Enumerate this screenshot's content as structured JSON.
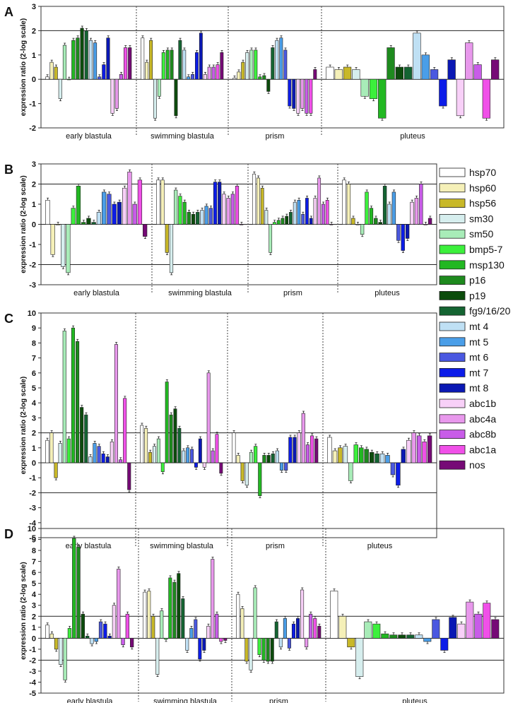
{
  "legend": {
    "items": [
      {
        "label": "hsp70",
        "color": "#ffffff"
      },
      {
        "label": "hsp60",
        "color": "#f5f0b8"
      },
      {
        "label": "hsp56",
        "color": "#c8b828"
      },
      {
        "label": "sm30",
        "color": "#d6eeee"
      },
      {
        "label": "sm50",
        "color": "#a8ecb8"
      },
      {
        "label": "bmp5-7",
        "color": "#3cf03c"
      },
      {
        "label": "msp130",
        "color": "#22b822"
      },
      {
        "label": "p16",
        "color": "#1e8a1e"
      },
      {
        "label": "p19",
        "color": "#0c4c0c"
      },
      {
        "label": "fg9/16/20",
        "color": "#146432"
      },
      {
        "label": "mt 4",
        "color": "#bfe0f4"
      },
      {
        "label": "mt 5",
        "color": "#4a9ee8"
      },
      {
        "label": "mt 6",
        "color": "#4a58e0"
      },
      {
        "label": "mt 7",
        "color": "#0c1ce8"
      },
      {
        "label": "mt 8",
        "color": "#0a18b4"
      },
      {
        "label": "abc1b",
        "color": "#f8d0f8"
      },
      {
        "label": "abc4a",
        "color": "#e898ec"
      },
      {
        "label": "abc8b",
        "color": "#c85ce8"
      },
      {
        "label": "abc1a",
        "color": "#f050e8"
      },
      {
        "label": "nos",
        "color": "#760a76"
      }
    ]
  },
  "chart_data": [
    {
      "panel": "A",
      "type": "bar",
      "ylabel": "expression ratio (2-log scale)",
      "ylim": [
        -2,
        3
      ],
      "yticks": [
        "3",
        "2",
        "1",
        "0",
        "-1",
        "-2"
      ],
      "reference_lines": [
        2
      ],
      "categories": [
        "early blastula",
        "swimming blastula",
        "prism",
        "pluteus"
      ],
      "groups": [
        [
          0.1,
          0.7,
          0.5,
          -0.8,
          1.4,
          0.0,
          1.6,
          1.7,
          2.1,
          2.0,
          1.6,
          1.5,
          0.1,
          0.6,
          1.7,
          -1.4,
          -1.2,
          0.2,
          1.3,
          1.3
        ],
        [
          1.7,
          0.7,
          1.6,
          -1.6,
          -0.7,
          1.1,
          1.2,
          1.2,
          -1.5,
          1.6,
          1.2,
          0.1,
          0.2,
          1.1,
          1.9,
          0.2,
          0.5,
          0.5,
          0.6,
          1.1
        ],
        [
          0.05,
          0.3,
          0.7,
          1.1,
          1.2,
          1.2,
          0.1,
          0.15,
          -0.5,
          1.3,
          1.6,
          1.7,
          1.2,
          -1.1,
          -1.2,
          -1.4,
          -1.2,
          -1.4,
          -1.4,
          0.4
        ],
        [
          0.5,
          0.4,
          0.5,
          0.4,
          -0.7,
          -0.8,
          -1.6,
          1.3,
          0.5,
          0.5,
          1.9,
          1.0,
          0.4,
          -1.1,
          0.8,
          -1.5,
          1.5,
          0.6,
          -1.6,
          0.8
        ]
      ]
    },
    {
      "panel": "B",
      "type": "bar",
      "ylabel": "expression ratio (2-log scale)",
      "ylim": [
        -3,
        3
      ],
      "yticks": [
        "3",
        "2",
        "1",
        "0",
        "-1",
        "-2",
        "-3"
      ],
      "reference_lines": [
        2,
        -2
      ],
      "categories": [
        "early blastula",
        "swimming blastula",
        "prism",
        "pluteus"
      ],
      "groups": [
        [
          1.2,
          -1.5,
          0.0,
          -2.1,
          -2.4,
          0.8,
          1.9,
          0.1,
          0.3,
          0.1,
          0.6,
          1.6,
          1.5,
          1.0,
          1.1,
          1.8,
          2.6,
          1.0,
          2.2,
          -0.6
        ],
        [
          2.2,
          2.2,
          -1.4,
          -2.4,
          1.7,
          1.4,
          1.1,
          0.6,
          0.5,
          0.6,
          0.7,
          0.9,
          0.8,
          2.1,
          2.1,
          1.5,
          1.3,
          1.5,
          1.9,
          0.0
        ],
        [
          2.5,
          2.3,
          1.8,
          0.7,
          -1.4,
          0.1,
          0.2,
          0.3,
          0.4,
          0.6,
          1.1,
          1.2,
          0.5,
          1.3,
          0.3,
          1.3,
          2.3,
          1.0,
          1.2,
          0.0
        ],
        [
          2.2,
          2.0,
          0.3,
          0.0,
          -0.5,
          1.6,
          0.8,
          0.3,
          0.1,
          1.9,
          1.0,
          1.6,
          -0.8,
          -1.3,
          -0.7,
          1.1,
          1.3,
          2.0,
          0.0,
          0.3
        ]
      ]
    },
    {
      "panel": "C",
      "type": "bar",
      "ylabel": "expression ratio (2-log scale)",
      "ylim": [
        -5,
        10
      ],
      "yticks": [
        "10",
        "9",
        "8",
        "7",
        "6",
        "5",
        "4",
        "3",
        "2",
        "1",
        "0",
        "-1",
        "-2",
        "-3",
        "-4",
        "-5"
      ],
      "reference_lines": [
        2,
        -2
      ],
      "categories": [
        "early blastula",
        "swimming blastula",
        "prism",
        "pluteus"
      ],
      "groups": [
        [
          1.5,
          2.0,
          -1.0,
          1.3,
          8.8,
          1.6,
          9.0,
          8.1,
          3.7,
          3.2,
          0.4,
          1.3,
          1.1,
          0.6,
          0.4,
          1.4,
          7.9,
          0.2,
          4.3,
          -1.8
        ],
        [
          2.5,
          2.3,
          0.7,
          1.1,
          1.6,
          -0.6,
          5.4,
          3.2,
          3.6,
          2.3,
          0.8,
          1.0,
          0.9,
          -0.3,
          1.6,
          -0.3,
          6.0,
          0.8,
          1.9,
          -0.7
        ],
        [
          2.0,
          0.5,
          -1.2,
          -1.5,
          0.7,
          1.1,
          -2.2,
          0.5,
          0.5,
          0.6,
          0.8,
          -0.5,
          -0.5,
          1.7,
          1.7,
          2.0,
          3.3,
          1.2,
          1.8,
          1.6
        ],
        [
          1.7,
          0.8,
          1.0,
          1.1,
          -1.2,
          1.2,
          1.0,
          0.9,
          0.7,
          0.6,
          0.6,
          0.5,
          -0.8,
          -1.5,
          0.9,
          1.5,
          2.0,
          1.8,
          1.4,
          1.8
        ]
      ]
    },
    {
      "panel": "D",
      "type": "bar",
      "ylabel": "expression ratio (2-log scale)",
      "ylim": [
        -5,
        10
      ],
      "yticks": [
        "10",
        "9",
        "8",
        "7",
        "6",
        "5",
        "4",
        "3",
        "2",
        "1",
        "0",
        "-1",
        "-2",
        "-3",
        "-4",
        "-5"
      ],
      "reference_lines": [
        2,
        -2
      ],
      "categories": [
        "early blastula",
        "swimming blastula",
        "prism",
        "pluteus"
      ],
      "groups": [
        [
          1.2,
          0.4,
          -1.0,
          -2.4,
          -3.8,
          0.9,
          9.1,
          8.3,
          2.2,
          0.2,
          -0.5,
          -0.3,
          1.5,
          1.3,
          0.2,
          3.0,
          6.3,
          -0.6,
          2.2,
          -0.8
        ],
        [
          4.2,
          4.3,
          2.0,
          -3.3,
          2.5,
          -0.1,
          5.5,
          5.1,
          5.9,
          3.6,
          -1.1,
          0.9,
          1.7,
          -1.9,
          -1.1,
          1.1,
          7.2,
          2.2,
          -0.3,
          -0.2
        ],
        [
          4.0,
          2.7,
          -2.1,
          -2.9,
          4.6,
          -1.5,
          -2.0,
          -2.1,
          -2.1,
          1.5,
          -0.8,
          1.8,
          -0.9,
          1.3,
          1.8,
          4.4,
          -0.8,
          2.2,
          1.8,
          1.1
        ],
        [
          4.3,
          2.0,
          -0.8,
          -3.5,
          1.5,
          1.3,
          0.4,
          0.3,
          0.3,
          0.3,
          0.3,
          -0.3,
          1.7,
          -1.1,
          1.9,
          1.3,
          3.3,
          2.2,
          3.2,
          1.7
        ]
      ]
    }
  ]
}
